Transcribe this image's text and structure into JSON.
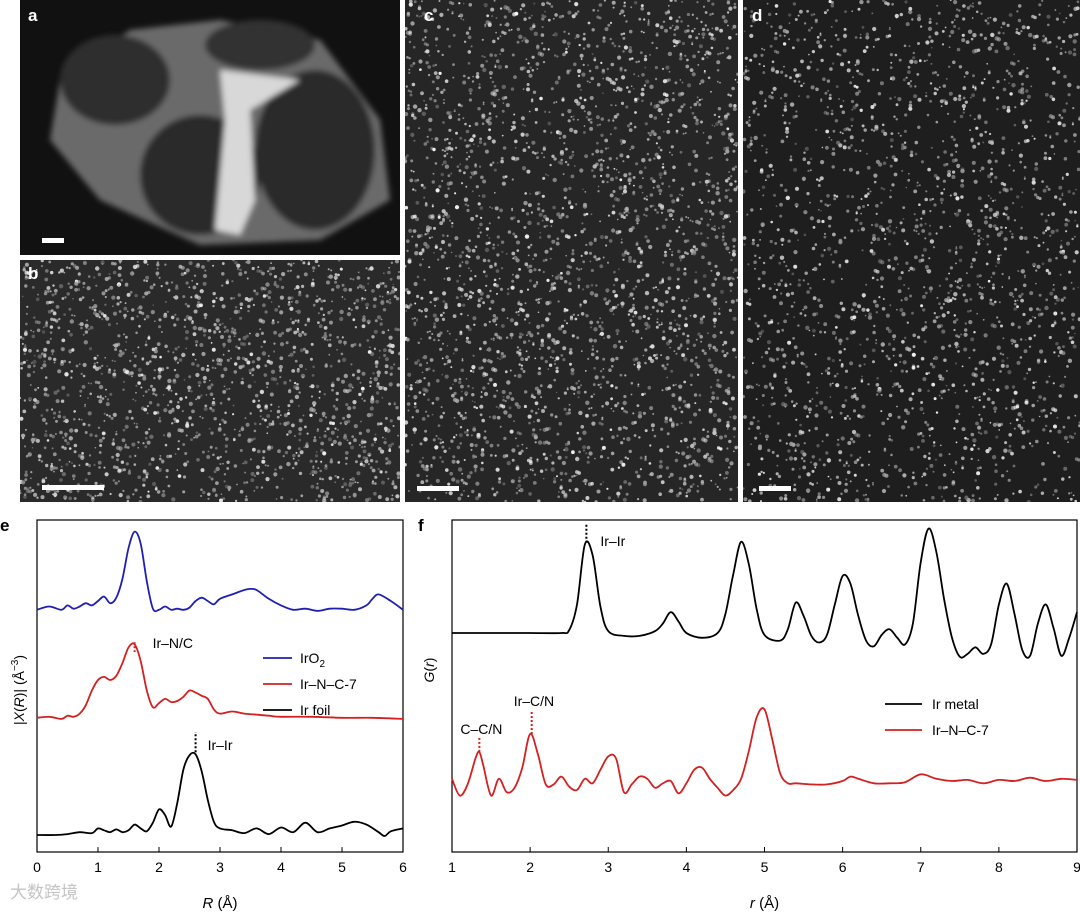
{
  "panels": {
    "a": {
      "label": "a"
    },
    "b": {
      "label": "b"
    },
    "c": {
      "label": "c"
    },
    "d": {
      "label": "d"
    },
    "e": {
      "label": "e"
    },
    "f": {
      "label": "f"
    }
  },
  "watermark": "大数跨境",
  "chart_data": [
    {
      "type": "line",
      "panel": "e",
      "xlabel": "R (Å)",
      "ylabel": "|X(R)| (Å−3)",
      "xlim": [
        0,
        6
      ],
      "x_ticks": [
        "0",
        "1",
        "2",
        "3",
        "4",
        "5",
        "6"
      ],
      "y_ticks_shown": false,
      "legend_placement": "right",
      "series": [
        {
          "name": "IrO2",
          "color": "#1f1fb4",
          "x": [
            0.0,
            0.2,
            0.4,
            0.5,
            0.6,
            0.7,
            0.8,
            0.9,
            1.0,
            1.1,
            1.2,
            1.3,
            1.4,
            1.5,
            1.6,
            1.7,
            1.8,
            1.9,
            2.0,
            2.1,
            2.2,
            2.3,
            2.4,
            2.5,
            2.6,
            2.7,
            2.8,
            2.9,
            3.0,
            3.2,
            3.4,
            3.5,
            3.6,
            3.8,
            4.0,
            4.2,
            4.4,
            4.6,
            4.8,
            5.0,
            5.2,
            5.4,
            5.5,
            5.6,
            5.8,
            6.0
          ],
          "y": [
            0.02,
            0.05,
            0.02,
            0.06,
            0.03,
            0.05,
            0.08,
            0.06,
            0.1,
            0.14,
            0.08,
            0.13,
            0.3,
            0.58,
            0.73,
            0.62,
            0.28,
            0.03,
            0.02,
            0.05,
            0.02,
            0.03,
            0.02,
            0.04,
            0.1,
            0.13,
            0.1,
            0.07,
            0.12,
            0.16,
            0.2,
            0.21,
            0.2,
            0.12,
            0.06,
            0.02,
            0.03,
            0.01,
            0.03,
            0.03,
            0.02,
            0.06,
            0.12,
            0.16,
            0.1,
            0.02
          ]
        },
        {
          "name": "Ir–N–C-7",
          "color": "#d42020",
          "x": [
            0.0,
            0.2,
            0.4,
            0.5,
            0.6,
            0.7,
            0.8,
            0.9,
            1.0,
            1.1,
            1.2,
            1.3,
            1.4,
            1.5,
            1.6,
            1.7,
            1.8,
            1.9,
            2.0,
            2.1,
            2.2,
            2.3,
            2.4,
            2.5,
            2.6,
            2.7,
            2.8,
            2.9,
            3.0,
            3.2,
            3.4,
            3.6,
            3.8,
            4.0,
            4.5,
            5.0,
            5.5,
            6.0
          ],
          "y": [
            0.04,
            0.05,
            0.03,
            0.06,
            0.05,
            0.08,
            0.16,
            0.3,
            0.4,
            0.43,
            0.4,
            0.44,
            0.56,
            0.71,
            0.74,
            0.58,
            0.3,
            0.14,
            0.18,
            0.22,
            0.19,
            0.2,
            0.24,
            0.3,
            0.28,
            0.25,
            0.22,
            0.12,
            0.08,
            0.1,
            0.08,
            0.07,
            0.06,
            0.05,
            0.05,
            0.04,
            0.04,
            0.03
          ]
        },
        {
          "name": "Ir foil",
          "color": "#000000",
          "x": [
            0.0,
            0.3,
            0.5,
            0.7,
            0.9,
            1.0,
            1.1,
            1.2,
            1.3,
            1.4,
            1.5,
            1.6,
            1.7,
            1.8,
            1.9,
            2.0,
            2.1,
            2.2,
            2.3,
            2.4,
            2.5,
            2.6,
            2.7,
            2.8,
            2.9,
            3.0,
            3.2,
            3.4,
            3.6,
            3.8,
            4.0,
            4.2,
            4.4,
            4.6,
            4.8,
            5.0,
            5.2,
            5.4,
            5.6,
            5.7,
            5.8,
            6.0
          ],
          "y": [
            0.01,
            0.01,
            0.02,
            0.04,
            0.03,
            0.08,
            0.06,
            0.04,
            0.07,
            0.04,
            0.06,
            0.12,
            0.08,
            0.05,
            0.14,
            0.28,
            0.22,
            0.1,
            0.35,
            0.7,
            0.85,
            0.86,
            0.68,
            0.38,
            0.15,
            0.08,
            0.06,
            0.03,
            0.08,
            0.02,
            0.09,
            0.04,
            0.14,
            0.04,
            0.08,
            0.11,
            0.15,
            0.12,
            0.04,
            0.0,
            0.05,
            0.08
          ]
        }
      ],
      "annotations": [
        {
          "text": "Ir–N/C",
          "x": 1.6
        },
        {
          "text": "Ir–Ir",
          "x": 2.6
        }
      ]
    },
    {
      "type": "line",
      "panel": "f",
      "xlabel": "r (Å)",
      "ylabel": "G(r)",
      "xlim": [
        1,
        9
      ],
      "x_ticks": [
        "1",
        "2",
        "3",
        "4",
        "5",
        "6",
        "7",
        "8",
        "9"
      ],
      "y_ticks_shown": false,
      "legend_placement": "right",
      "series": [
        {
          "name": "Ir metal",
          "color": "#000000",
          "x": [
            1.0,
            1.5,
            2.0,
            2.4,
            2.5,
            2.6,
            2.7,
            2.8,
            2.9,
            3.0,
            3.2,
            3.4,
            3.6,
            3.7,
            3.8,
            3.9,
            4.0,
            4.2,
            4.4,
            4.5,
            4.6,
            4.7,
            4.8,
            4.9,
            5.0,
            5.2,
            5.3,
            5.4,
            5.5,
            5.6,
            5.7,
            5.8,
            5.9,
            6.0,
            6.1,
            6.2,
            6.3,
            6.4,
            6.5,
            6.6,
            6.7,
            6.8,
            6.9,
            7.0,
            7.1,
            7.2,
            7.3,
            7.4,
            7.5,
            7.6,
            7.7,
            7.8,
            7.9,
            8.0,
            8.1,
            8.2,
            8.3,
            8.4,
            8.5,
            8.6,
            8.7,
            8.8,
            8.9,
            9.0
          ],
          "y": [
            0.0,
            0.0,
            0.0,
            0.0,
            0.03,
            0.3,
            0.93,
            0.82,
            0.28,
            0.02,
            -0.03,
            -0.03,
            0.02,
            0.1,
            0.22,
            0.12,
            0.0,
            -0.05,
            0.0,
            0.2,
            0.62,
            0.96,
            0.72,
            0.25,
            -0.02,
            -0.08,
            0.04,
            0.32,
            0.18,
            -0.03,
            -0.1,
            -0.02,
            0.3,
            0.6,
            0.52,
            0.18,
            -0.08,
            -0.14,
            -0.02,
            0.04,
            -0.05,
            -0.12,
            0.1,
            0.75,
            1.1,
            0.85,
            0.35,
            -0.05,
            -0.25,
            -0.22,
            -0.15,
            -0.22,
            -0.12,
            0.3,
            0.52,
            0.2,
            -0.18,
            -0.24,
            0.1,
            0.3,
            0.05,
            -0.24,
            -0.05,
            0.22
          ]
        },
        {
          "name": "Ir–N–C-7",
          "color": "#d42020",
          "x": [
            1.0,
            1.1,
            1.2,
            1.3,
            1.35,
            1.4,
            1.5,
            1.6,
            1.7,
            1.8,
            1.9,
            2.0,
            2.1,
            2.2,
            2.3,
            2.4,
            2.5,
            2.6,
            2.7,
            2.8,
            2.9,
            3.0,
            3.1,
            3.2,
            3.3,
            3.4,
            3.5,
            3.6,
            3.7,
            3.8,
            3.9,
            4.0,
            4.1,
            4.2,
            4.3,
            4.4,
            4.5,
            4.6,
            4.7,
            4.8,
            4.9,
            5.0,
            5.1,
            5.2,
            5.3,
            5.4,
            5.6,
            5.8,
            6.0,
            6.1,
            6.2,
            6.4,
            6.6,
            6.8,
            7.0,
            7.2,
            7.4,
            7.6,
            7.8,
            8.0,
            8.2,
            8.4,
            8.6,
            8.8,
            9.0
          ],
          "y": [
            0.1,
            -0.05,
            0.05,
            0.28,
            0.34,
            0.22,
            -0.05,
            0.1,
            -0.02,
            0.02,
            0.2,
            0.5,
            0.32,
            0.05,
            0.05,
            0.12,
            0.03,
            0.0,
            0.1,
            0.06,
            0.18,
            0.3,
            0.28,
            -0.02,
            0.05,
            0.12,
            0.1,
            0.02,
            0.06,
            0.08,
            -0.03,
            0.06,
            0.18,
            0.2,
            0.1,
            0.02,
            -0.05,
            0.0,
            0.1,
            0.35,
            0.65,
            0.72,
            0.45,
            0.15,
            0.06,
            0.06,
            0.05,
            0.05,
            0.08,
            0.12,
            0.1,
            0.06,
            0.06,
            0.07,
            0.14,
            0.1,
            0.08,
            0.09,
            0.06,
            0.09,
            0.08,
            0.11,
            0.08,
            0.1,
            0.09
          ]
        }
      ],
      "annotations": [
        {
          "text": "Ir–Ir",
          "x": 2.72
        },
        {
          "text": "Ir–C/N",
          "x": 2.02
        },
        {
          "text": "C–C/N",
          "x": 1.35
        }
      ]
    }
  ]
}
